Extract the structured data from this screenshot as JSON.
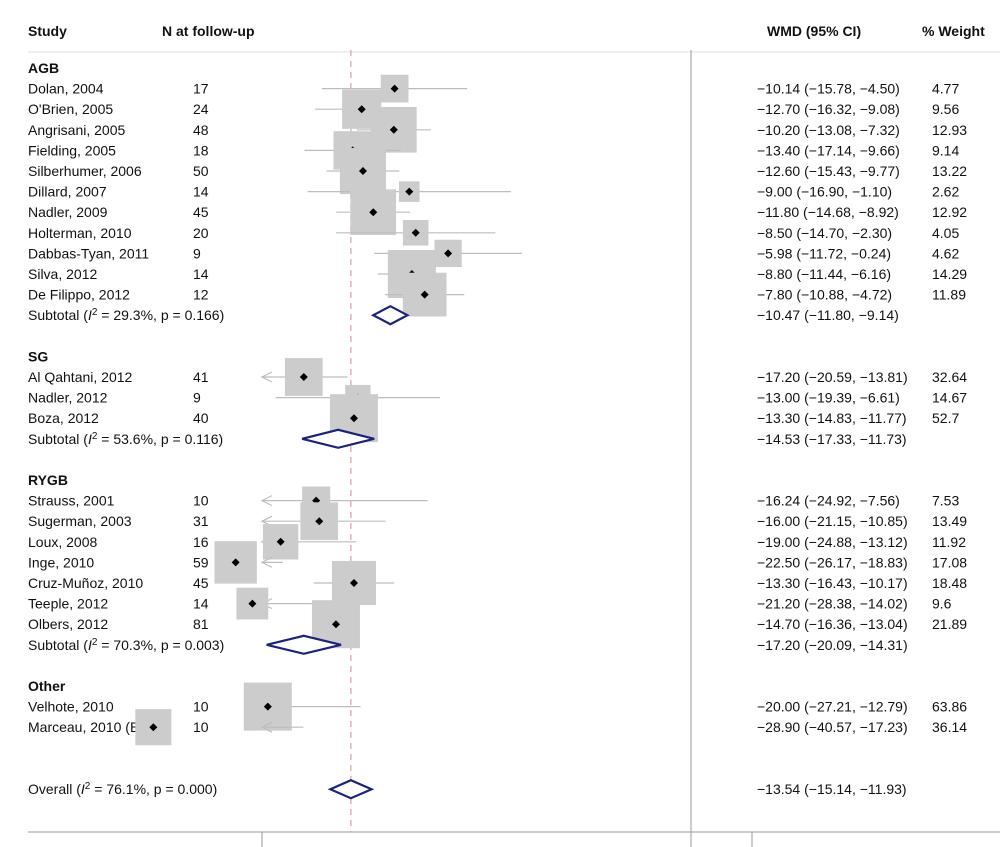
{
  "headers": {
    "study": "Study",
    "n": "N at follow-up",
    "wmd": "WMD (95% CI)",
    "weight": "% Weight"
  },
  "chart_data": {
    "type": "forest",
    "x_axis": {
      "domain": [
        -40,
        12
      ],
      "null_line": 0,
      "reference_line": -13.54
    },
    "groups": [
      {
        "name": "AGB",
        "studies": [
          {
            "label": "Dolan, 2004",
            "n": "17",
            "est": -10.14,
            "lo": -15.78,
            "hi": -4.5,
            "text": "−10.14 (−15.78, −4.50)",
            "weight": 4.77
          },
          {
            "label": "O'Brien, 2005",
            "n": "24",
            "est": -12.7,
            "lo": -16.32,
            "hi": -9.08,
            "text": "−12.70 (−16.32, −9.08)",
            "weight": 9.56
          },
          {
            "label": "Angrisani, 2005",
            "n": "48",
            "est": -10.2,
            "lo": -13.08,
            "hi": -7.32,
            "text": "−10.20 (−13.08, −7.32)",
            "weight": 12.93
          },
          {
            "label": "Fielding, 2005",
            "n": "18",
            "est": -13.4,
            "lo": -17.14,
            "hi": -9.66,
            "text": "−13.40 (−17.14, −9.66)",
            "weight": 9.14
          },
          {
            "label": "Silberhumer, 2006",
            "n": "50",
            "est": -12.6,
            "lo": -15.43,
            "hi": -9.77,
            "text": "−12.60 (−15.43, −9.77)",
            "weight": 13.22
          },
          {
            "label": "Dillard, 2007",
            "n": "14",
            "est": -9.0,
            "lo": -16.9,
            "hi": -1.1,
            "text": "−9.00 (−16.90, −1.10)",
            "weight": 2.62
          },
          {
            "label": "Nadler, 2009",
            "n": "45",
            "est": -11.8,
            "lo": -14.68,
            "hi": -8.92,
            "text": "−11.80 (−14.68, −8.92)",
            "weight": 12.92
          },
          {
            "label": "Holterman, 2010",
            "n": "20",
            "est": -8.5,
            "lo": -14.7,
            "hi": -2.3,
            "text": "−8.50 (−14.70, −2.30)",
            "weight": 4.05
          },
          {
            "label": "Dabbas-Tyan, 2011",
            "n": "9",
            "est": -5.98,
            "lo": -11.72,
            "hi": -0.24,
            "text": "−5.98 (−11.72, −0.24)",
            "weight": 4.62
          },
          {
            "label": "Silva, 2012",
            "n": "14",
            "est": -8.8,
            "lo": -11.44,
            "hi": -6.16,
            "text": "−8.80 (−11.44, −6.16)",
            "weight": 14.29
          },
          {
            "label": "De Filippo, 2012",
            "n": "12",
            "est": -7.8,
            "lo": -10.88,
            "hi": -4.72,
            "text": "−7.80 (−10.88, −4.72)",
            "weight": 11.89
          }
        ],
        "subtotal": {
          "label_pre": "Subtotal  (",
          "i2_var": "I",
          "i2_sup": "2",
          "label_post": " = 29.3%, p = 0.166)",
          "est": -10.47,
          "lo": -11.8,
          "hi": -9.14,
          "text": "−10.47 (−11.80, −9.14)"
        }
      },
      {
        "name": "SG",
        "studies": [
          {
            "label": "Al Qahtani, 2012",
            "n": "41",
            "est": -17.2,
            "lo": -20.59,
            "hi": -13.81,
            "text": "−17.20 (−20.59, −13.81)",
            "weight": 32.64
          },
          {
            "label": "Nadler, 2012",
            "n": "9",
            "est": -13.0,
            "lo": -19.39,
            "hi": -6.61,
            "text": "−13.00 (−19.39, −6.61)",
            "weight": 14.67
          },
          {
            "label": "Boza, 2012",
            "n": "40",
            "est": -13.3,
            "lo": -14.83,
            "hi": -11.77,
            "text": "−13.30 (−14.83, −11.77)",
            "weight": 52.7
          }
        ],
        "subtotal": {
          "label_pre": "Subtotal  (",
          "i2_var": "I",
          "i2_sup": "2",
          "label_post": " = 53.6%, p = 0.116)",
          "est": -14.53,
          "lo": -17.33,
          "hi": -11.73,
          "text": "−14.53 (−17.33, −11.73)"
        }
      },
      {
        "name": "RYGB",
        "studies": [
          {
            "label": "Strauss, 2001",
            "n": "10",
            "est": -16.24,
            "lo": -24.92,
            "hi": -7.56,
            "text": "−16.24 (−24.92, −7.56)",
            "weight": 7.53
          },
          {
            "label": "Sugerman, 2003",
            "n": "31",
            "est": -16.0,
            "lo": -21.15,
            "hi": -10.85,
            "text": "−16.00 (−21.15, −10.85)",
            "weight": 13.49
          },
          {
            "label": "Loux, 2008",
            "n": "16",
            "est": -19.0,
            "lo": -24.88,
            "hi": -13.12,
            "text": "−19.00 (−24.88, −13.12)",
            "weight": 11.92
          },
          {
            "label": "Inge, 2010",
            "n": "59",
            "est": -22.5,
            "lo": -26.17,
            "hi": -18.83,
            "text": "−22.50 (−26.17, −18.83)",
            "weight": 17.08
          },
          {
            "label": "Cruz-Muñoz, 2010",
            "n": "45",
            "est": -13.3,
            "lo": -16.43,
            "hi": -10.17,
            "text": "−13.30 (−16.43, −10.17)",
            "weight": 18.48
          },
          {
            "label": "Teeple, 2012",
            "n": "14",
            "est": -21.2,
            "lo": -28.38,
            "hi": -14.02,
            "text": "−21.20 (−28.38, −14.02)",
            "weight": 9.6
          },
          {
            "label": "Olbers, 2012",
            "n": "81",
            "est": -14.7,
            "lo": -16.36,
            "hi": -13.04,
            "text": "−14.70 (−16.36, −13.04)",
            "weight": 21.89
          }
        ],
        "subtotal": {
          "label_pre": "Subtotal  (",
          "i2_var": "I",
          "i2_sup": "2",
          "label_post": " = 70.3%, p = 0.003)",
          "est": -17.2,
          "lo": -20.09,
          "hi": -14.31,
          "text": "−17.20 (−20.09, −14.31)"
        }
      },
      {
        "name": "Other",
        "studies": [
          {
            "label": "Velhote, 2010",
            "n": "10",
            "est": -20.0,
            "lo": -27.21,
            "hi": -12.79,
            "text": "−20.00 (−27.21, −12.79)",
            "weight": 63.86
          },
          {
            "label": "Marceau, 2010 (BPD)",
            "n": "10",
            "est": -28.9,
            "lo": -40.57,
            "hi": -17.23,
            "text": "−28.90 (−40.57, −17.23)",
            "weight": 36.14
          }
        ]
      }
    ],
    "overall": {
      "label_pre": "Overall  (",
      "i2_var": "I",
      "i2_sup": "2",
      "label_post": " = 76.1%, p = 0.000)",
      "est": -13.54,
      "lo": -15.14,
      "hi": -11.93,
      "text": "−13.54 (−15.14, −11.93)"
    }
  },
  "colors": {
    "text": "#111111",
    "ci_line": "#bdbdbd",
    "weight_box": "#cccccc",
    "marker": "#000000",
    "diamond": "#1a237e",
    "ref_line": "#d9a0a8",
    "divider": "#e0e0e0",
    "axis": "#999999"
  }
}
